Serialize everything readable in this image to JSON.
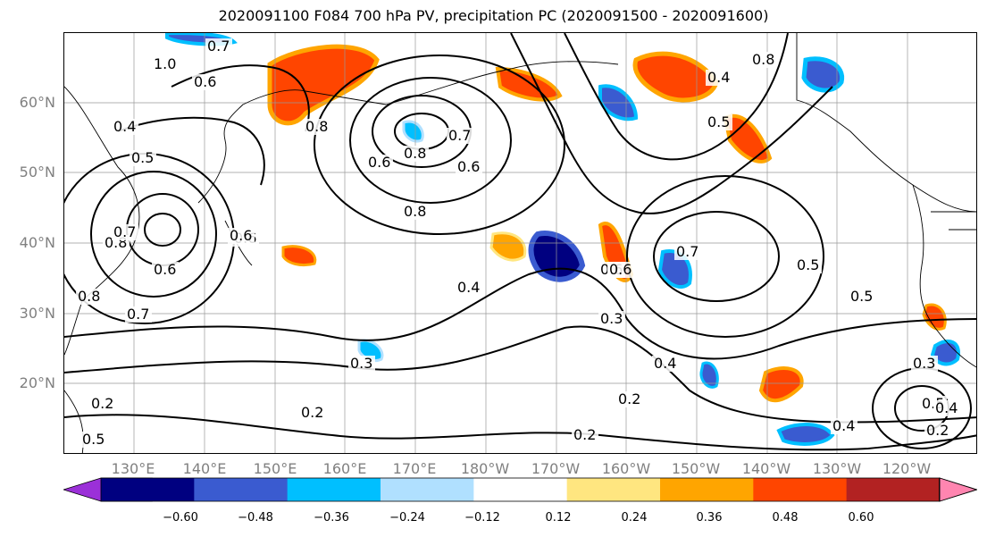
{
  "title": "2020091100 F084 700 hPa PV, precipitation PC (2020091500 - 2020091600)",
  "lat_labels": [
    "60°N",
    "50°N",
    "40°N",
    "30°N",
    "20°N"
  ],
  "lon_labels": [
    "130°E",
    "140°E",
    "150°E",
    "160°E",
    "170°E",
    "180°W",
    "170°W",
    "160°W",
    "150°W",
    "140°W",
    "130°W",
    "120°W"
  ],
  "colorbar": {
    "colors": [
      "#9b30d8",
      "#000080",
      "#3a5bd0",
      "#00bfff",
      "#b0e0ff",
      "#ffffff",
      "#ffe680",
      "#ffa500",
      "#ff4500",
      "#b22222",
      "#ff85b0"
    ],
    "ticks": [
      "−0.60",
      "−0.48",
      "−0.36",
      "−0.24",
      "−0.12",
      "0.12",
      "0.24",
      "0.36",
      "0.48",
      "0.60"
    ]
  },
  "contour_labels": [
    {
      "text": "1.0"
    },
    {
      "text": "0.7"
    },
    {
      "text": "0.6"
    },
    {
      "text": "0.4"
    },
    {
      "text": "0.5"
    },
    {
      "text": "0.8"
    },
    {
      "text": "0.6"
    },
    {
      "text": "0.8"
    },
    {
      "text": "0.7"
    },
    {
      "text": "0.6"
    },
    {
      "text": "0.8"
    },
    {
      "text": "0.6"
    },
    {
      "text": "0.8"
    },
    {
      "text": "0.7"
    },
    {
      "text": "0.6"
    },
    {
      "text": "0.8"
    },
    {
      "text": "0.7"
    },
    {
      "text": "0.6"
    },
    {
      "text": "0.6"
    },
    {
      "text": "0.4"
    },
    {
      "text": "0.3"
    },
    {
      "text": "0.6"
    },
    {
      "text": "0.7"
    },
    {
      "text": "0.5"
    },
    {
      "text": "0.5"
    },
    {
      "text": "0.3"
    },
    {
      "text": "0.4"
    },
    {
      "text": "0.2"
    },
    {
      "text": "0.2"
    },
    {
      "text": "0.2"
    },
    {
      "text": "0.3"
    },
    {
      "text": "0.4"
    },
    {
      "text": "0.5"
    },
    {
      "text": "0.4"
    },
    {
      "text": "0.2"
    },
    {
      "text": "0.2"
    },
    {
      "text": "0.5"
    },
    {
      "text": "0.4"
    },
    {
      "text": "0.5"
    },
    {
      "text": "0.8"
    }
  ]
}
